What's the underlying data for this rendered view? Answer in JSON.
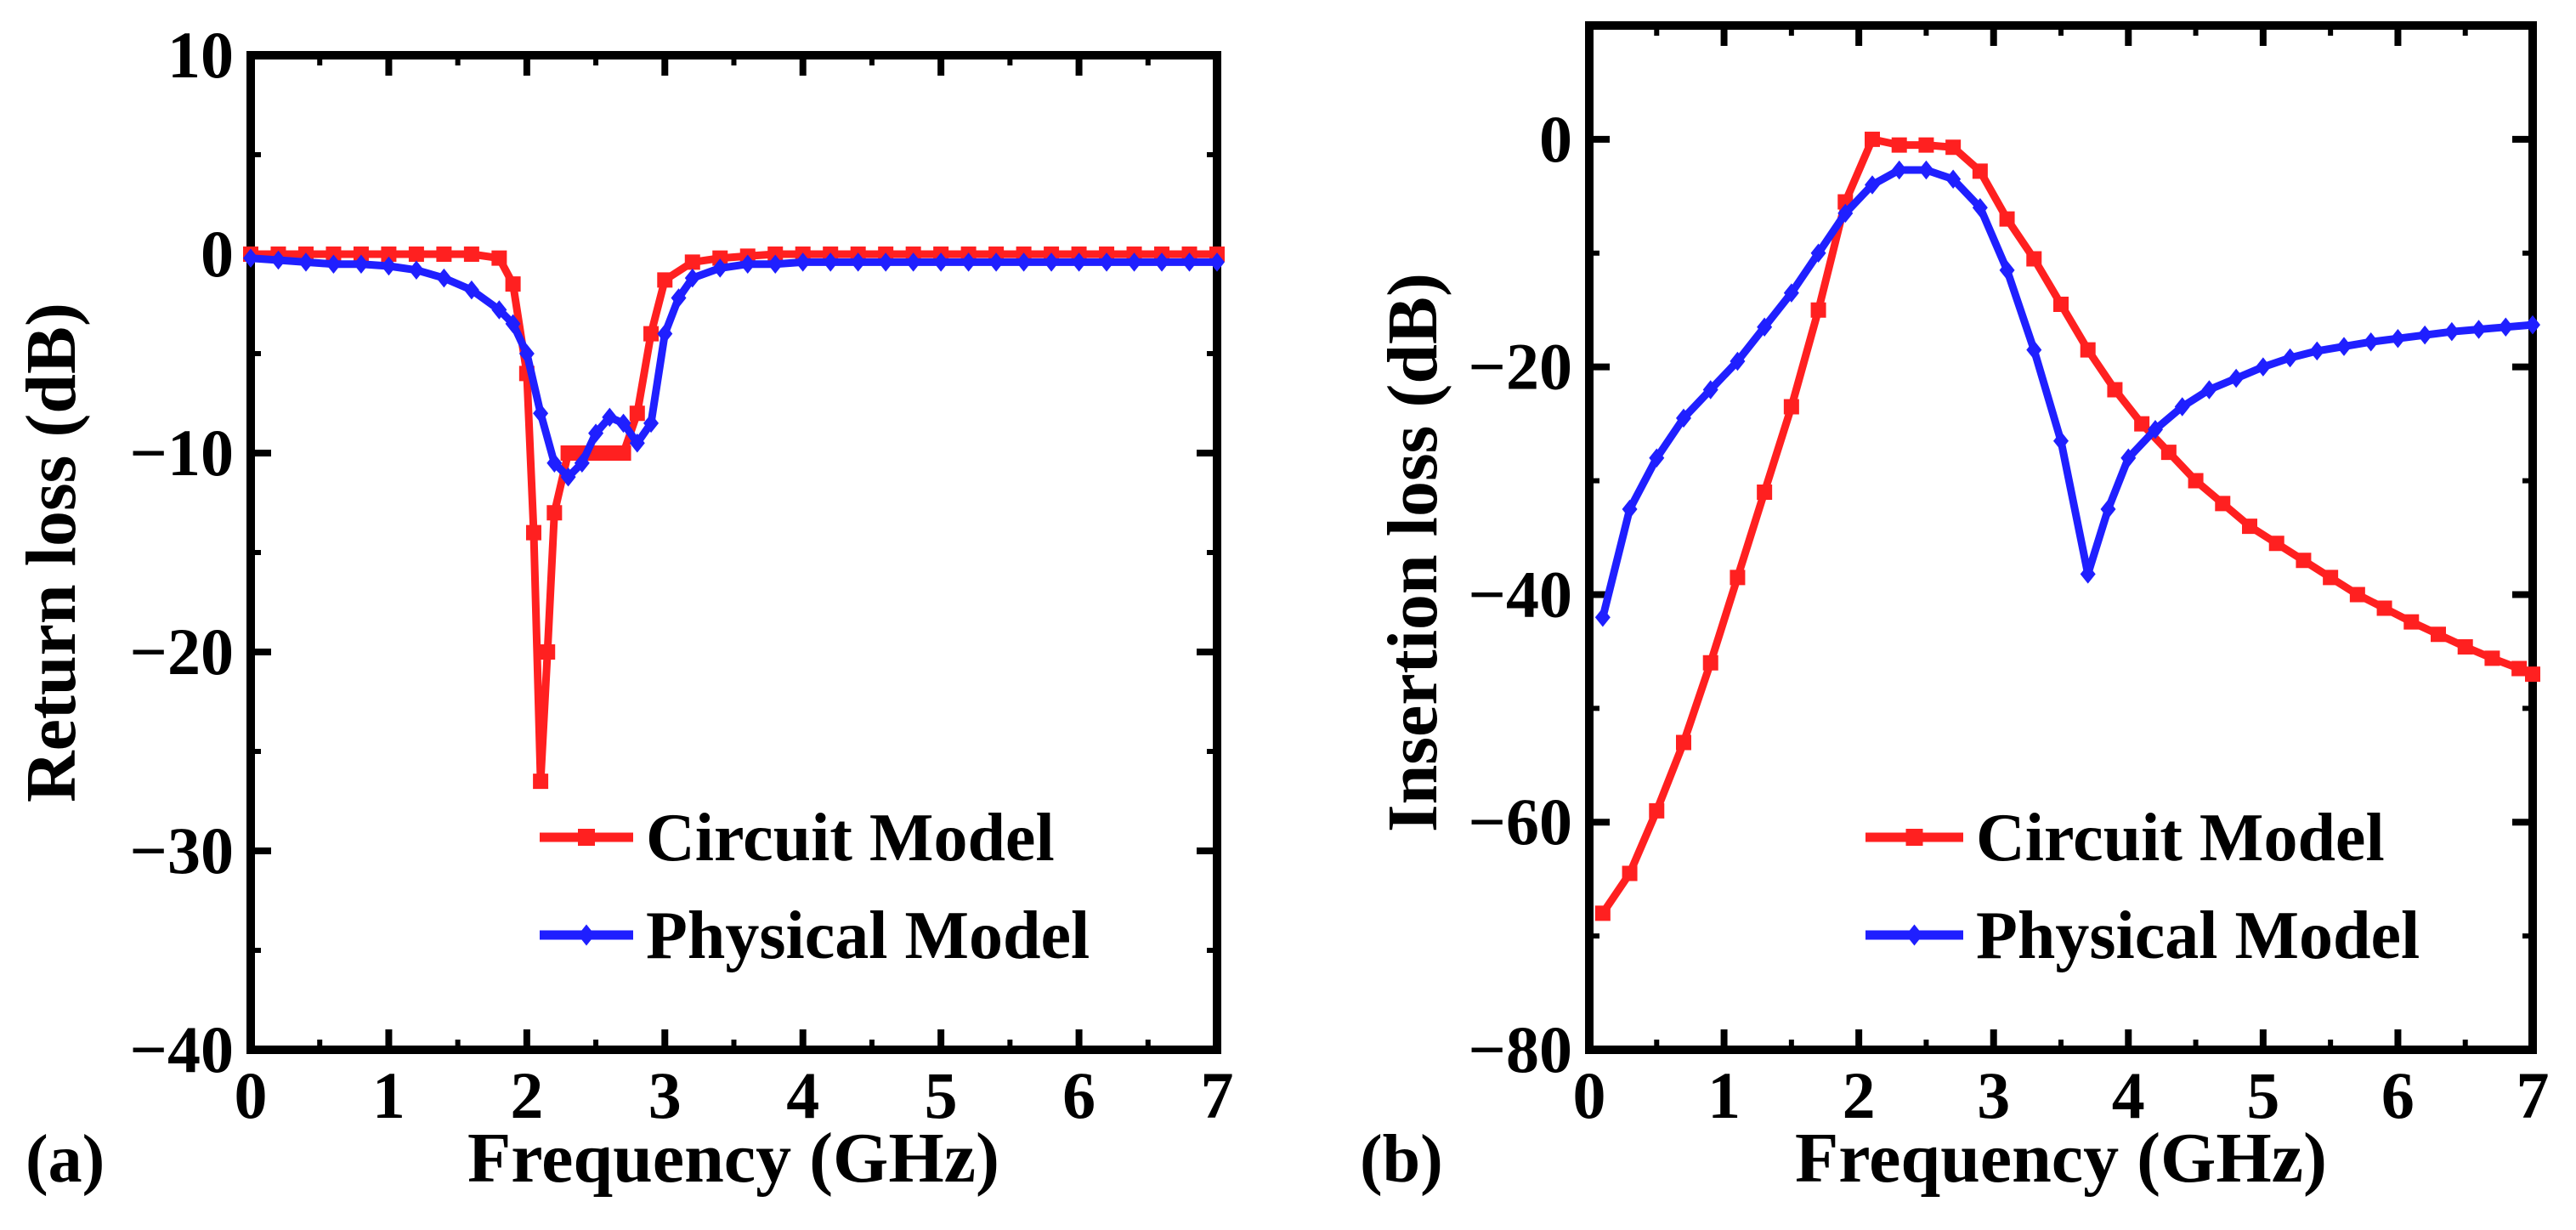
{
  "colors": {
    "circuit": "#ff2020",
    "physical": "#1f1fff",
    "axis": "#000000"
  },
  "chart_data": [
    {
      "panel_label": "(a)",
      "type": "line",
      "xlabel": "Frequency (GHz)",
      "ylabel": "Return loss (dB)",
      "xlim": [
        0,
        7
      ],
      "ylim": [
        -40,
        10
      ],
      "xticks": [
        0,
        1,
        2,
        3,
        4,
        5,
        6,
        7
      ],
      "yticks": [
        10,
        0,
        -10,
        -20,
        -30,
        -40
      ],
      "ytick_labels": [
        "10",
        "0",
        "−10",
        "−20",
        "−30",
        "−40"
      ],
      "legend": {
        "placement": "bottom-right",
        "entries": [
          "Circuit Model",
          "Physical Model"
        ]
      },
      "series": [
        {
          "name": "Circuit Model",
          "color": "#ff2020",
          "marker": "square",
          "x": [
            0,
            0.2,
            0.4,
            0.6,
            0.8,
            1.0,
            1.2,
            1.4,
            1.6,
            1.8,
            1.9,
            2.0,
            2.05,
            2.1,
            2.15,
            2.2,
            2.3,
            2.4,
            2.5,
            2.6,
            2.7,
            2.8,
            2.9,
            3.0,
            3.2,
            3.4,
            3.6,
            3.8,
            4.0,
            4.2,
            4.4,
            4.6,
            4.8,
            5.0,
            5.2,
            5.4,
            5.6,
            5.8,
            6.0,
            6.2,
            6.4,
            6.6,
            6.8,
            7.0
          ],
          "y": [
            0,
            0,
            0,
            0,
            0,
            0,
            0,
            0,
            0,
            -0.2,
            -1.5,
            -6,
            -14,
            -26.5,
            -20,
            -13,
            -10,
            -10,
            -10,
            -10,
            -10,
            -8,
            -4,
            -1.3,
            -0.4,
            -0.2,
            -0.1,
            0,
            0,
            0,
            0,
            0,
            0,
            0,
            0,
            0,
            0,
            0,
            0,
            0,
            0,
            0,
            0,
            0
          ]
        },
        {
          "name": "Physical Model",
          "color": "#1f1fff",
          "marker": "diamond",
          "x": [
            0,
            0.2,
            0.4,
            0.6,
            0.8,
            1.0,
            1.2,
            1.4,
            1.6,
            1.8,
            1.9,
            2.0,
            2.1,
            2.2,
            2.3,
            2.4,
            2.5,
            2.6,
            2.7,
            2.8,
            2.9,
            3.0,
            3.1,
            3.2,
            3.4,
            3.6,
            3.8,
            4.0,
            4.2,
            4.4,
            4.6,
            4.8,
            5.0,
            5.2,
            5.4,
            5.6,
            5.8,
            6.0,
            6.2,
            6.4,
            6.6,
            6.8,
            7.0
          ],
          "y": [
            -0.2,
            -0.3,
            -0.4,
            -0.5,
            -0.5,
            -0.6,
            -0.8,
            -1.2,
            -1.8,
            -2.8,
            -3.5,
            -5,
            -8,
            -10.5,
            -11.2,
            -10.5,
            -9,
            -8.2,
            -8.5,
            -9.5,
            -8.5,
            -4,
            -2.2,
            -1.2,
            -0.7,
            -0.5,
            -0.5,
            -0.4,
            -0.4,
            -0.4,
            -0.4,
            -0.4,
            -0.4,
            -0.4,
            -0.4,
            -0.4,
            -0.4,
            -0.4,
            -0.4,
            -0.4,
            -0.4,
            -0.4,
            -0.4
          ]
        }
      ]
    },
    {
      "panel_label": "(b)",
      "type": "line",
      "xlabel": "Frequency (GHz)",
      "ylabel": "Insertion loss (dB)",
      "xlim": [
        0,
        7
      ],
      "ylim": [
        -80,
        10
      ],
      "xticks": [
        0,
        1,
        2,
        3,
        4,
        5,
        6,
        7
      ],
      "yticks": [
        0,
        -20,
        -40,
        -60,
        -80
      ],
      "ytick_labels": [
        "0",
        "−20",
        "−40",
        "−60",
        "−80"
      ],
      "legend": {
        "placement": "bottom-right",
        "entries": [
          "Circuit Model",
          "Physical Model"
        ]
      },
      "series": [
        {
          "name": "Circuit Model",
          "color": "#ff2020",
          "marker": "square",
          "x": [
            0.1,
            0.3,
            0.5,
            0.7,
            0.9,
            1.1,
            1.3,
            1.5,
            1.7,
            1.9,
            2.1,
            2.3,
            2.5,
            2.7,
            2.9,
            3.1,
            3.3,
            3.5,
            3.7,
            3.9,
            4.1,
            4.3,
            4.5,
            4.7,
            4.9,
            5.1,
            5.3,
            5.5,
            5.7,
            5.9,
            6.1,
            6.3,
            6.5,
            6.7,
            6.9,
            7.0
          ],
          "y": [
            -68,
            -64.5,
            -59,
            -53,
            -46,
            -38.5,
            -31,
            -23.5,
            -15,
            -5.5,
            0,
            -0.5,
            -0.5,
            -0.7,
            -2.8,
            -7,
            -10.5,
            -14.5,
            -18.5,
            -22,
            -25,
            -27.5,
            -30,
            -32,
            -34,
            -35.5,
            -37,
            -38.5,
            -40,
            -41.2,
            -42.4,
            -43.5,
            -44.6,
            -45.6,
            -46.5,
            -47
          ]
        },
        {
          "name": "Physical Model",
          "color": "#1f1fff",
          "marker": "diamond",
          "x": [
            0.1,
            0.3,
            0.5,
            0.7,
            0.9,
            1.1,
            1.3,
            1.5,
            1.7,
            1.9,
            2.1,
            2.3,
            2.5,
            2.7,
            2.9,
            3.1,
            3.3,
            3.5,
            3.7,
            3.85,
            4.0,
            4.2,
            4.4,
            4.6,
            4.8,
            5.0,
            5.2,
            5.4,
            5.6,
            5.8,
            6.0,
            6.2,
            6.4,
            6.6,
            6.8,
            7.0
          ],
          "y": [
            -42,
            -32.5,
            -28,
            -24.5,
            -22,
            -19.5,
            -16.5,
            -13.5,
            -10,
            -6.5,
            -4,
            -2.7,
            -2.7,
            -3.5,
            -6,
            -11.5,
            -18.5,
            -26.5,
            -38.2,
            -32.5,
            -28,
            -25.5,
            -23.5,
            -22,
            -21,
            -20,
            -19.2,
            -18.6,
            -18.2,
            -17.8,
            -17.5,
            -17.2,
            -16.9,
            -16.7,
            -16.5,
            -16.3
          ]
        }
      ]
    }
  ]
}
